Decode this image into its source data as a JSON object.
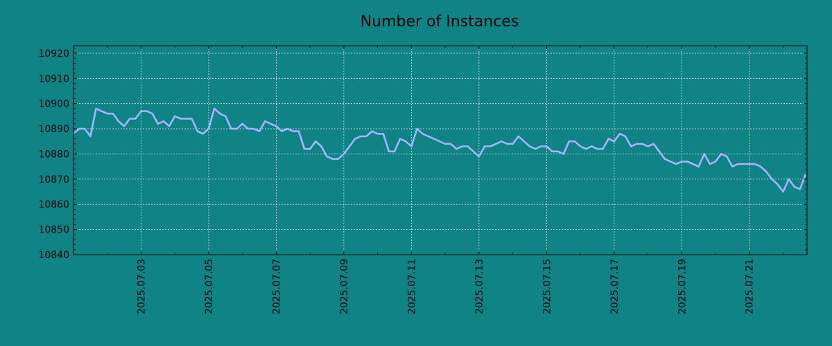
{
  "colors": {
    "background": "#108387",
    "line": "#a6b4ff",
    "grid": "#d8e4e4",
    "axis": "#000000"
  },
  "chart_data": {
    "type": "line",
    "title": "Number of Instances",
    "xlabel": "",
    "ylabel": "",
    "grid": true,
    "legend": "none",
    "xlim": [
      "2025-07-01",
      "2025-07-22 17:00"
    ],
    "ylim": [
      10840,
      10923
    ],
    "yticks": [
      10840,
      10850,
      10860,
      10870,
      10880,
      10890,
      10900,
      10910,
      10920
    ],
    "xticks": [
      "2025.07.03",
      "2025.07.05",
      "2025.07.07",
      "2025.07.09",
      "2025.07.11",
      "2025.07.13",
      "2025.07.15",
      "2025.07.17",
      "2025.07.19",
      "2025.07.21"
    ],
    "series": [
      {
        "x": [
          "2025-07-01 00:00",
          "2025-07-01 04:00",
          "2025-07-01 08:00",
          "2025-07-01 12:00",
          "2025-07-01 16:00",
          "2025-07-01 20:00",
          "2025-07-02 00:00",
          "2025-07-02 04:00",
          "2025-07-02 08:00",
          "2025-07-02 12:00",
          "2025-07-02 16:00",
          "2025-07-02 20:00",
          "2025-07-03 00:00",
          "2025-07-03 04:00",
          "2025-07-03 08:00",
          "2025-07-03 12:00",
          "2025-07-03 16:00",
          "2025-07-03 20:00",
          "2025-07-04 00:00",
          "2025-07-04 04:00",
          "2025-07-04 08:00",
          "2025-07-04 12:00",
          "2025-07-04 16:00",
          "2025-07-04 20:00",
          "2025-07-05 00:00",
          "2025-07-05 04:00",
          "2025-07-05 08:00",
          "2025-07-05 12:00",
          "2025-07-05 16:00",
          "2025-07-05 20:00",
          "2025-07-06 00:00",
          "2025-07-06 04:00",
          "2025-07-06 08:00",
          "2025-07-06 12:00",
          "2025-07-06 16:00",
          "2025-07-06 20:00",
          "2025-07-07 00:00",
          "2025-07-07 04:00",
          "2025-07-07 08:00",
          "2025-07-07 12:00",
          "2025-07-07 16:00",
          "2025-07-07 20:00",
          "2025-07-08 00:00",
          "2025-07-08 04:00",
          "2025-07-08 08:00",
          "2025-07-08 12:00",
          "2025-07-08 16:00",
          "2025-07-08 20:00",
          "2025-07-09 00:00",
          "2025-07-09 04:00",
          "2025-07-09 08:00",
          "2025-07-09 12:00",
          "2025-07-09 16:00",
          "2025-07-09 20:00",
          "2025-07-10 00:00",
          "2025-07-10 04:00",
          "2025-07-10 08:00",
          "2025-07-10 12:00",
          "2025-07-10 16:00",
          "2025-07-10 20:00",
          "2025-07-11 00:00",
          "2025-07-11 04:00",
          "2025-07-11 08:00",
          "2025-07-11 12:00",
          "2025-07-11 16:00",
          "2025-07-11 20:00",
          "2025-07-12 00:00",
          "2025-07-12 04:00",
          "2025-07-12 08:00",
          "2025-07-12 12:00",
          "2025-07-12 16:00",
          "2025-07-12 20:00",
          "2025-07-13 00:00",
          "2025-07-13 04:00",
          "2025-07-13 08:00",
          "2025-07-13 12:00",
          "2025-07-13 16:00",
          "2025-07-13 20:00",
          "2025-07-14 00:00",
          "2025-07-14 04:00",
          "2025-07-14 08:00",
          "2025-07-14 12:00",
          "2025-07-14 16:00",
          "2025-07-14 20:00",
          "2025-07-15 00:00",
          "2025-07-15 04:00",
          "2025-07-15 08:00",
          "2025-07-15 12:00",
          "2025-07-15 16:00",
          "2025-07-15 20:00",
          "2025-07-16 00:00",
          "2025-07-16 04:00",
          "2025-07-16 08:00",
          "2025-07-16 12:00",
          "2025-07-16 16:00",
          "2025-07-16 20:00",
          "2025-07-17 00:00",
          "2025-07-17 04:00",
          "2025-07-17 08:00",
          "2025-07-17 12:00",
          "2025-07-17 16:00",
          "2025-07-17 20:00",
          "2025-07-18 00:00",
          "2025-07-18 04:00",
          "2025-07-18 08:00",
          "2025-07-18 12:00",
          "2025-07-18 16:00",
          "2025-07-18 20:00",
          "2025-07-19 00:00",
          "2025-07-19 04:00",
          "2025-07-19 08:00",
          "2025-07-19 12:00",
          "2025-07-19 16:00",
          "2025-07-19 20:00",
          "2025-07-20 00:00",
          "2025-07-20 04:00",
          "2025-07-20 08:00",
          "2025-07-20 12:00",
          "2025-07-20 16:00",
          "2025-07-20 20:00",
          "2025-07-21 00:00",
          "2025-07-21 04:00",
          "2025-07-21 08:00",
          "2025-07-21 12:00",
          "2025-07-21 16:00",
          "2025-07-21 20:00",
          "2025-07-22 00:00",
          "2025-07-22 04:00",
          "2025-07-22 08:00",
          "2025-07-22 12:00",
          "2025-07-22 16:00"
        ],
        "values": [
          10888,
          10890,
          10890,
          10887,
          10898,
          10897,
          10896,
          10896,
          10893,
          10891,
          10894,
          10894,
          10897,
          10897,
          10896,
          10892,
          10893,
          10891,
          10895,
          10894,
          10894,
          10894,
          10889,
          10888,
          10890,
          10898,
          10896,
          10895,
          10890,
          10890,
          10892,
          10890,
          10890,
          10889,
          10893,
          10892,
          10891,
          10889,
          10890,
          10889,
          10889,
          10882,
          10882,
          10885,
          10883,
          10879,
          10878,
          10878,
          10880,
          10883,
          10886,
          10887,
          10887,
          10889,
          10888,
          10888,
          10881,
          10881,
          10886,
          10885,
          10883,
          10890,
          10888,
          10887,
          10886,
          10885,
          10884,
          10884,
          10882,
          10883,
          10883,
          10881,
          10879,
          10883,
          10883,
          10884,
          10885,
          10884,
          10884,
          10887,
          10885,
          10883,
          10882,
          10883,
          10883,
          10881,
          10881,
          10880,
          10885,
          10885,
          10883,
          10882,
          10883,
          10882,
          10882,
          10886,
          10885,
          10888,
          10887,
          10883,
          10884,
          10884,
          10883,
          10884,
          10881,
          10878,
          10877,
          10876,
          10877,
          10877,
          10876,
          10875,
          10880,
          10876,
          10877,
          10880,
          10879,
          10875,
          10876,
          10876,
          10876,
          10876,
          10875,
          10873,
          10870,
          10868,
          10865,
          10870,
          10867,
          10866,
          10872
        ]
      }
    ]
  }
}
